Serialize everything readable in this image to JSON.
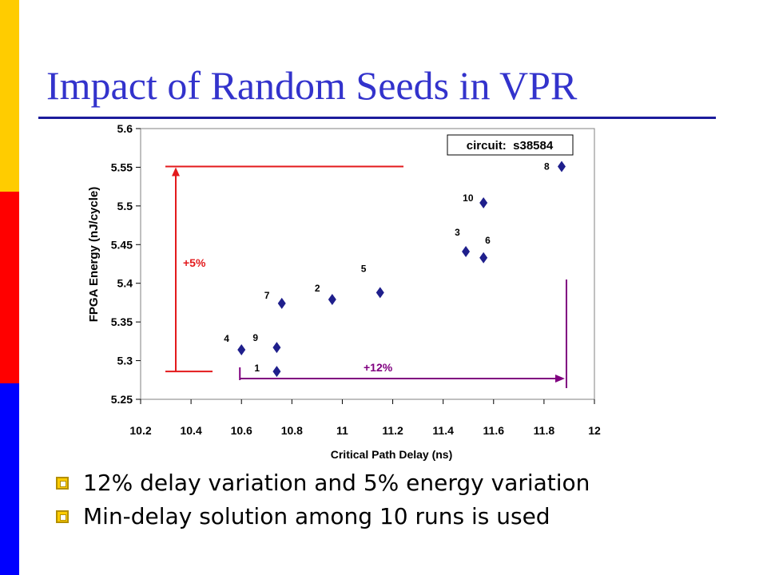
{
  "slide": {
    "title": "Impact of Random Seeds in VPR",
    "bullets": [
      "12% delay variation and 5% energy variation",
      "Min-delay solution among 10 runs is used"
    ]
  },
  "colors": {
    "side_yellow": "#ffcc00",
    "side_red": "#ff0000",
    "side_blue": "#0000ff",
    "title": "#3333cc",
    "marker": "#1f1f8c",
    "energy_arrow": "#e31a1c",
    "delay_arrow": "#800080"
  },
  "chart_data": {
    "type": "scatter",
    "xlabel": "Critical Path Delay (ns)",
    "ylabel": "FPGA Energy (nJ/cycle)",
    "xlim": [
      10.2,
      12
    ],
    "ylim": [
      5.25,
      5.6
    ],
    "x_ticks": [
      "10.2",
      "10.4",
      "10.6",
      "10.8",
      "11",
      "11.2",
      "11.4",
      "11.6",
      "11.8",
      "12"
    ],
    "y_ticks": [
      "5.25",
      "5.3",
      "5.35",
      "5.4",
      "5.45",
      "5.5",
      "5.55",
      "5.6"
    ],
    "grid": false,
    "legend_box": "circuit:  s38584",
    "points": [
      {
        "label": "1",
        "x": 10.74,
        "y": 5.286
      },
      {
        "label": "2",
        "x": 10.96,
        "y": 5.379
      },
      {
        "label": "3",
        "x": 11.49,
        "y": 5.441
      },
      {
        "label": "4",
        "x": 10.6,
        "y": 5.314
      },
      {
        "label": "5",
        "x": 11.15,
        "y": 5.388
      },
      {
        "label": "6",
        "x": 11.56,
        "y": 5.433
      },
      {
        "label": "7",
        "x": 10.76,
        "y": 5.374
      },
      {
        "label": "8",
        "x": 11.87,
        "y": 5.551
      },
      {
        "label": "9",
        "x": 10.74,
        "y": 5.317
      },
      {
        "label": "10",
        "x": 11.56,
        "y": 5.504
      }
    ],
    "annotations": [
      {
        "text": "+5%",
        "kind": "energy-range",
        "from_y": 5.286,
        "to_y": 5.551
      },
      {
        "text": "+12%",
        "kind": "delay-range",
        "from_x": 10.6,
        "to_x": 11.87
      }
    ]
  }
}
